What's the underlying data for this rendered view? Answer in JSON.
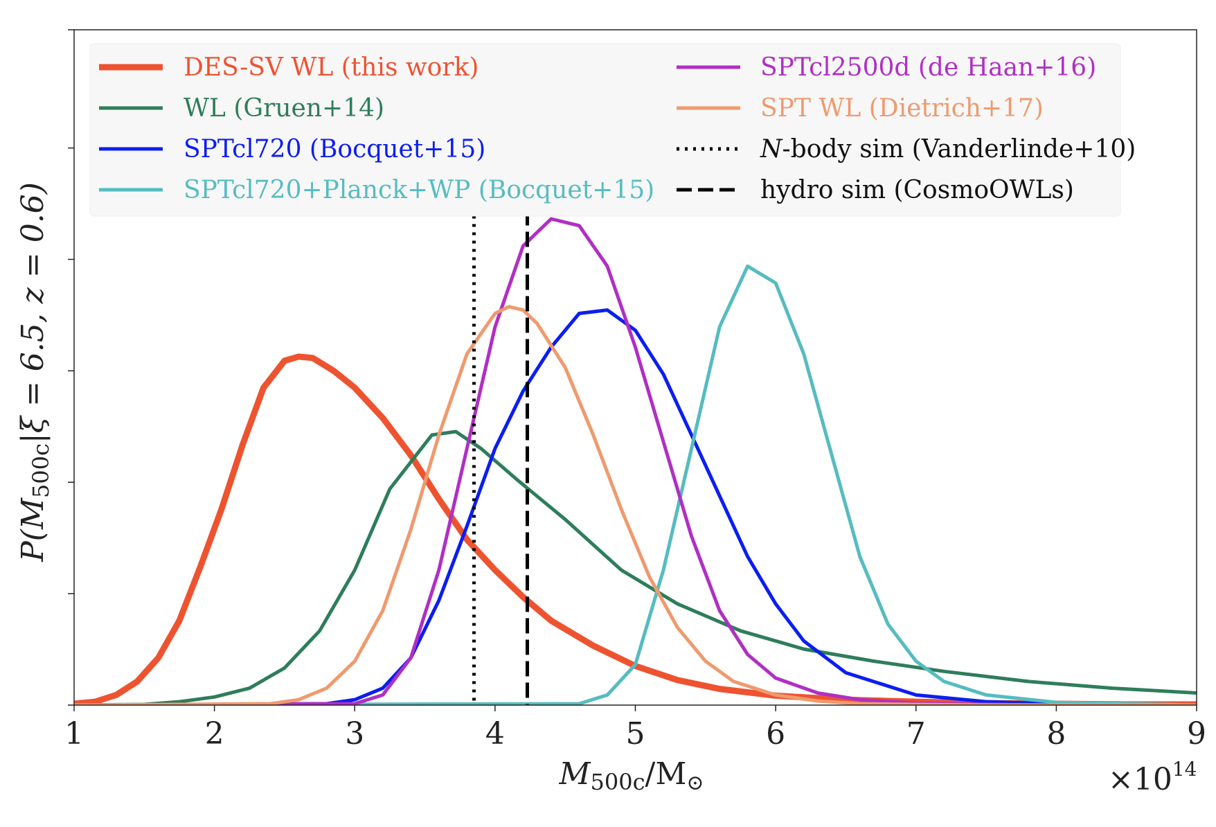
{
  "chart_data": {
    "type": "line",
    "xlabel": "M_500c/M_⊙",
    "xlabel_parts": {
      "main": "M",
      "sub": "500c",
      "sep": "/M",
      "sun": "⊙"
    },
    "ylabel": "P(M_500c|ξ = 6.5, z = 0.6)",
    "ylabel_parts": {
      "pre": "P(M",
      "sub": "500c",
      "post": "|ξ = 6.5, z = 0.6)"
    },
    "x_multiplier": {
      "base": "×10",
      "exp": "14"
    },
    "xlim": [
      1,
      9
    ],
    "ylim": [
      0,
      1.0
    ],
    "xticks": [
      "1",
      "2",
      "3",
      "4",
      "5",
      "6",
      "7",
      "8",
      "9"
    ],
    "xtick_values": [
      1,
      2,
      3,
      4,
      5,
      6,
      7,
      8,
      9
    ],
    "ytick_values": [
      0.0,
      0.165,
      0.33,
      0.495,
      0.66,
      0.825,
      1.0
    ],
    "grid": false,
    "legend_position": "top",
    "series": [
      {
        "name": "DES-SV WL (this work)",
        "color": "#ee5330",
        "width": 9,
        "style": "solid",
        "x": [
          1.0,
          1.15,
          1.3,
          1.45,
          1.6,
          1.75,
          1.9,
          2.05,
          2.2,
          2.35,
          2.5,
          2.6,
          2.7,
          2.85,
          3.0,
          3.2,
          3.4,
          3.6,
          3.8,
          4.0,
          4.2,
          4.4,
          4.7,
          5.0,
          5.3,
          5.6,
          6.0,
          6.5,
          7.0,
          7.5,
          8.0,
          8.5,
          9.0
        ],
        "y": [
          0.002,
          0.005,
          0.015,
          0.035,
          0.07,
          0.125,
          0.205,
          0.29,
          0.385,
          0.47,
          0.51,
          0.516,
          0.514,
          0.495,
          0.47,
          0.425,
          0.37,
          0.305,
          0.245,
          0.2,
          0.16,
          0.125,
          0.088,
          0.058,
          0.037,
          0.024,
          0.014,
          0.008,
          0.005,
          0.003,
          0.002,
          0.001,
          0.001
        ]
      },
      {
        "name": "WL (Gruen+14)",
        "color": "#2e7d5b",
        "width": 5,
        "style": "solid",
        "x": [
          1.0,
          1.5,
          1.75,
          2.0,
          2.25,
          2.5,
          2.75,
          3.0,
          3.25,
          3.55,
          3.72,
          3.9,
          4.15,
          4.5,
          4.9,
          5.3,
          5.75,
          6.2,
          6.7,
          7.2,
          7.8,
          8.4,
          9.0
        ],
        "y": [
          0.0,
          0.001,
          0.005,
          0.012,
          0.025,
          0.055,
          0.11,
          0.2,
          0.32,
          0.4,
          0.405,
          0.38,
          0.335,
          0.275,
          0.2,
          0.15,
          0.11,
          0.083,
          0.065,
          0.05,
          0.035,
          0.025,
          0.018
        ]
      },
      {
        "name": "SPTcl720 (Bocquet+15)",
        "color": "#0b1ef0",
        "width": 5,
        "style": "solid",
        "x": [
          1.0,
          2.8,
          3.0,
          3.2,
          3.4,
          3.6,
          3.8,
          4.0,
          4.2,
          4.4,
          4.6,
          4.8,
          5.0,
          5.2,
          5.4,
          5.6,
          5.8,
          6.0,
          6.2,
          6.5,
          7.0,
          7.5,
          8.0,
          9.0
        ],
        "y": [
          0.0,
          0.002,
          0.008,
          0.025,
          0.07,
          0.155,
          0.265,
          0.38,
          0.465,
          0.53,
          0.58,
          0.585,
          0.555,
          0.49,
          0.4,
          0.31,
          0.22,
          0.15,
          0.095,
          0.048,
          0.015,
          0.005,
          0.002,
          0.0
        ]
      },
      {
        "name": "SPTcl720+Planck+WP (Bocquet+15)",
        "color": "#56bcc0",
        "width": 5,
        "style": "solid",
        "x": [
          1.0,
          4.6,
          4.8,
          5.0,
          5.2,
          5.4,
          5.6,
          5.8,
          6.0,
          6.2,
          6.4,
          6.6,
          6.8,
          7.0,
          7.2,
          7.5,
          8.0,
          9.0
        ],
        "y": [
          0.0,
          0.002,
          0.015,
          0.06,
          0.2,
          0.38,
          0.56,
          0.65,
          0.625,
          0.52,
          0.37,
          0.22,
          0.12,
          0.065,
          0.035,
          0.015,
          0.004,
          0.0
        ]
      },
      {
        "name": "SPTcl2500d (de Haan+16)",
        "color": "#b02fc4",
        "width": 5,
        "style": "solid",
        "x": [
          1.0,
          3.0,
          3.2,
          3.4,
          3.6,
          3.8,
          4.0,
          4.2,
          4.4,
          4.6,
          4.8,
          5.0,
          5.2,
          5.4,
          5.6,
          5.8,
          6.0,
          6.3,
          6.6,
          7.0,
          7.5,
          8.0,
          9.0
        ],
        "y": [
          0.0,
          0.002,
          0.015,
          0.07,
          0.2,
          0.38,
          0.56,
          0.68,
          0.72,
          0.71,
          0.65,
          0.53,
          0.39,
          0.25,
          0.14,
          0.075,
          0.04,
          0.018,
          0.008,
          0.003,
          0.001,
          0.0,
          0.0
        ]
      },
      {
        "name": "SPT WL (Dietrich+17)",
        "color": "#ef9a6e",
        "width": 5,
        "style": "solid",
        "x": [
          1.0,
          2.4,
          2.6,
          2.8,
          3.0,
          3.2,
          3.4,
          3.6,
          3.8,
          4.0,
          4.1,
          4.2,
          4.3,
          4.5,
          4.7,
          4.9,
          5.1,
          5.3,
          5.5,
          5.7,
          6.0,
          6.3,
          6.6,
          7.0,
          7.5,
          8.0,
          9.0
        ],
        "y": [
          0.0,
          0.002,
          0.008,
          0.025,
          0.065,
          0.14,
          0.26,
          0.4,
          0.52,
          0.58,
          0.59,
          0.585,
          0.565,
          0.5,
          0.4,
          0.29,
          0.19,
          0.115,
          0.065,
          0.035,
          0.015,
          0.006,
          0.002,
          0.001,
          0.0,
          0.0,
          0.0
        ]
      }
    ],
    "vlines": [
      {
        "name": "N-body sim (Vanderlinde+10)",
        "x": 3.85,
        "color": "#000000",
        "style": "dotted"
      },
      {
        "name": "hydro sim (CosmoOWLs)",
        "x": 4.23,
        "color": "#000000",
        "style": "dashed"
      }
    ],
    "legend": {
      "left": [
        {
          "label": "DES-SV WL (this work)",
          "color": "#ee5330",
          "style": "solid",
          "width": 9
        },
        {
          "label": "WL (Gruen+14)",
          "color": "#2e7d5b",
          "style": "solid",
          "width": 5
        },
        {
          "label": "SPTcl720 (Bocquet+15)",
          "color": "#0b1ef0",
          "style": "solid",
          "width": 5
        },
        {
          "label": "SPTcl720+Planck+WP (Bocquet+15)",
          "color": "#56bcc0",
          "style": "solid",
          "width": 5
        }
      ],
      "right": [
        {
          "label": "SPTcl2500d (de Haan+16)",
          "color": "#b02fc4",
          "style": "solid",
          "width": 5
        },
        {
          "label": "SPT WL (Dietrich+17)",
          "color": "#ef9a6e",
          "style": "solid",
          "width": 5
        },
        {
          "label": "-body sim (Vanderlinde+10)",
          "label_prefix": "N",
          "color": "#000000",
          "style": "dotted",
          "width": 5
        },
        {
          "label": "hydro sim (CosmoOWLs)",
          "color": "#000000",
          "style": "dashed",
          "width": 5
        }
      ]
    }
  }
}
